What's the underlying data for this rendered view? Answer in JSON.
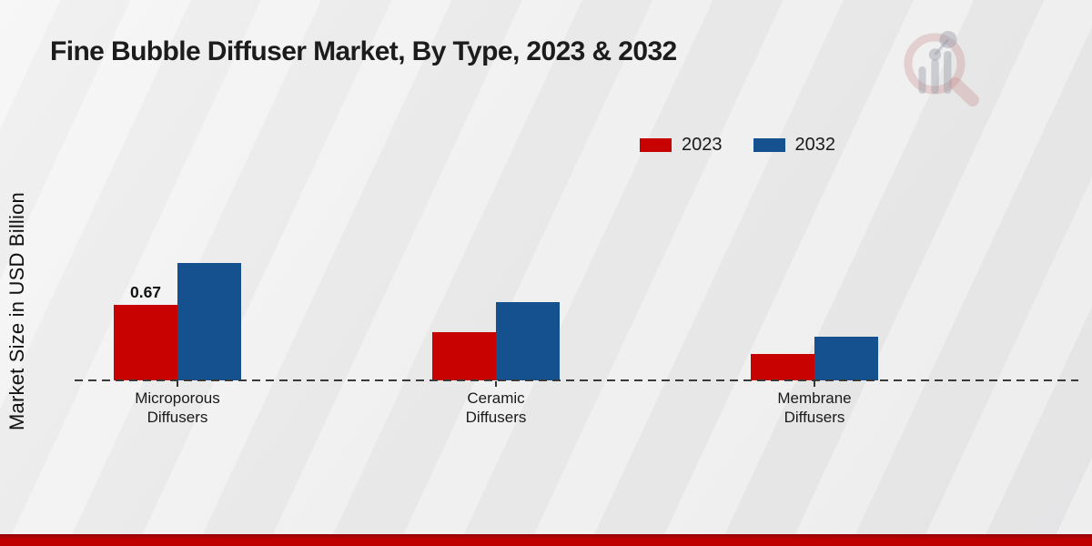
{
  "chart_data": {
    "type": "bar",
    "title": "Fine Bubble Diffuser Market, By Type, 2023 & 2032",
    "ylabel": "Market Size in USD Billion",
    "xlabel": "",
    "categories": [
      "Microporous Diffusers",
      "Ceramic Diffusers",
      "Membrane Diffusers"
    ],
    "series": [
      {
        "name": "2023",
        "color": "#c80200",
        "values": [
          0.67,
          0.43,
          0.23
        ]
      },
      {
        "name": "2032",
        "color": "#15508f",
        "values": [
          1.04,
          0.69,
          0.39
        ]
      }
    ],
    "annotations": [
      {
        "series": "2023",
        "category": "Microporous Diffusers",
        "text": "0.67"
      }
    ],
    "ylim": [
      0,
      1.2
    ],
    "grid": false,
    "legend_position": "top-right",
    "baseline_style": "dashed",
    "axis_labels_hidden": true
  },
  "footer": {
    "accent_color": "#c00000"
  },
  "watermark": {
    "icon": "magnifier-bar-chart-logo"
  }
}
